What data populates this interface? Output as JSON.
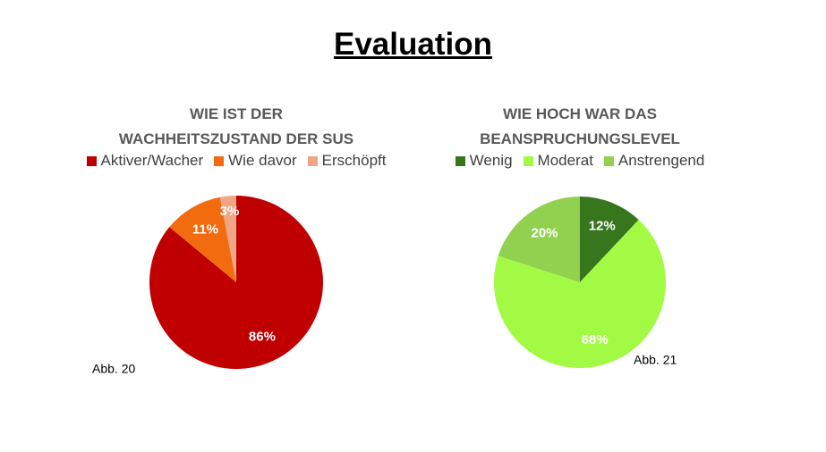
{
  "title": "Evaluation",
  "chart_data": [
    {
      "type": "pie",
      "title": "WIE IST DER\nWACHHEITSZUSTAND DER SUS",
      "categories": [
        "Aktiver/Wacher",
        "Wie davor",
        "Erschöpft"
      ],
      "values": [
        86,
        11,
        3
      ],
      "value_labels": [
        "86%",
        "11%",
        "3%"
      ],
      "colors": [
        "#c00000",
        "#f26b0f",
        "#f0a585"
      ],
      "caption": "Abb. 20"
    },
    {
      "type": "pie",
      "title": "WIE HOCH WAR DAS\nBEANSPRUCHUNGSLEVEL",
      "categories": [
        "Wenig",
        "Moderat",
        "Anstrengend"
      ],
      "values": [
        12,
        68,
        20
      ],
      "value_labels": [
        "12%",
        "68%",
        "20%"
      ],
      "colors": [
        "#38761d",
        "#a3fa45",
        "#92d050"
      ],
      "caption": "Abb. 21"
    }
  ]
}
